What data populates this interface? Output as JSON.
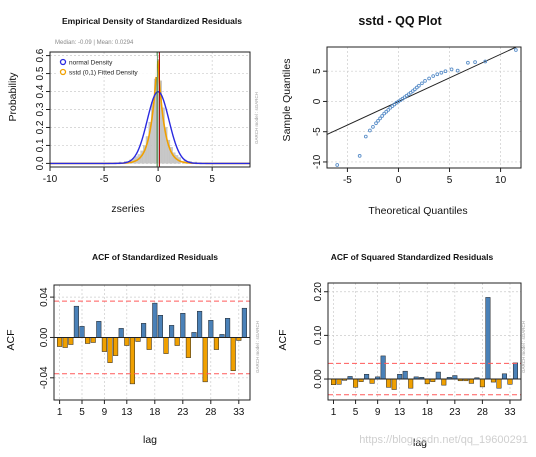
{
  "colors": {
    "steel": "#4a81b8",
    "orange": "#f0a000",
    "blue_line": "#2a2ae0",
    "hist_bar": "#c8c8c8",
    "conf_line": "#ff5a5a",
    "qq_point": "#5b8fc9",
    "grid": "#cccccc",
    "median_line": "#2e7d32",
    "mean_line": "#aa0000"
  },
  "watermark": "https://blog.csdn.net/qq_19600291",
  "chart_data": [
    {
      "type": "line",
      "title": "Empirical Density of Standardized Residuals",
      "subtitle": "Median: -0.09 | Mean: 0.0294",
      "xlabel": "zseries",
      "ylabel": "Probability",
      "side_text": "GARCH model : sGARCH",
      "xlim": [
        -10,
        8.5
      ],
      "ylim": [
        -0.02,
        0.62
      ],
      "x_ticks": [
        -10,
        -5,
        0,
        5
      ],
      "y_ticks": [
        0.0,
        0.1,
        0.2,
        0.3,
        0.4,
        0.5,
        0.6
      ],
      "y_tick_labels": [
        "0.0",
        "0.1",
        "0.2",
        "0.3",
        "0.4",
        "0.5",
        "0.6"
      ],
      "grid": true,
      "legend_position": "top-left",
      "legend": [
        "normal Density",
        "sstd (0,1) Fitted Density"
      ],
      "median_x": -0.09,
      "mean_x": 0.0294,
      "histogram_bin_width": 0.25,
      "histogram": [
        {
          "x": -4.5,
          "density": 0.003
        },
        {
          "x": -4.0,
          "density": 0.004
        },
        {
          "x": -3.5,
          "density": 0.008
        },
        {
          "x": -3.0,
          "density": 0.012
        },
        {
          "x": -2.5,
          "density": 0.02
        },
        {
          "x": -2.25,
          "density": 0.028
        },
        {
          "x": -2.0,
          "density": 0.038
        },
        {
          "x": -1.75,
          "density": 0.05
        },
        {
          "x": -1.5,
          "density": 0.07
        },
        {
          "x": -1.25,
          "density": 0.1
        },
        {
          "x": -1.0,
          "density": 0.15
        },
        {
          "x": -0.75,
          "density": 0.23
        },
        {
          "x": -0.5,
          "density": 0.34
        },
        {
          "x": -0.25,
          "density": 0.47
        },
        {
          "x": 0.0,
          "density": 0.58
        },
        {
          "x": 0.25,
          "density": 0.46
        },
        {
          "x": 0.5,
          "density": 0.31
        },
        {
          "x": 0.75,
          "density": 0.2
        },
        {
          "x": 1.0,
          "density": 0.13
        },
        {
          "x": 1.25,
          "density": 0.09
        },
        {
          "x": 1.5,
          "density": 0.06
        },
        {
          "x": 1.75,
          "density": 0.045
        },
        {
          "x": 2.0,
          "density": 0.033
        },
        {
          "x": 2.5,
          "density": 0.02
        },
        {
          "x": 3.0,
          "density": 0.012
        },
        {
          "x": 3.5,
          "density": 0.008
        },
        {
          "x": 4.5,
          "density": 0.004
        },
        {
          "x": 6.0,
          "density": 0.002
        }
      ],
      "series": [
        {
          "name": "normal Density",
          "type": "normal",
          "mean": 0.0,
          "sd": 1.0,
          "peak": 0.399
        },
        {
          "name": "sstd (0,1) Fitted Density",
          "type": "laplace-like",
          "center": -0.05,
          "peak": 0.6,
          "scale": 0.62
        }
      ]
    },
    {
      "type": "scatter",
      "title": "sstd - QQ Plot",
      "xlabel": "Theoretical Quantiles",
      "ylabel": "Sample Quantiles",
      "xlim": [
        -7,
        12
      ],
      "ylim": [
        -11,
        9
      ],
      "x_ticks": [
        -5,
        0,
        5,
        10
      ],
      "y_ticks": [
        -10,
        -5,
        0,
        5
      ],
      "grid": true,
      "reference_line": {
        "slope": 0.78,
        "intercept": 0.0
      },
      "points": [
        [
          -6.0,
          -10.5
        ],
        [
          -3.8,
          -9.0
        ],
        [
          -3.2,
          -5.8
        ],
        [
          -2.8,
          -4.8
        ],
        [
          -2.5,
          -4.2
        ],
        [
          -2.2,
          -3.6
        ],
        [
          -2.0,
          -3.2
        ],
        [
          -1.8,
          -2.8
        ],
        [
          -1.6,
          -2.4
        ],
        [
          -1.4,
          -2.0
        ],
        [
          -1.2,
          -1.7
        ],
        [
          -1.0,
          -1.4
        ],
        [
          -0.8,
          -1.05
        ],
        [
          -0.6,
          -0.78
        ],
        [
          -0.4,
          -0.5
        ],
        [
          -0.2,
          -0.22
        ],
        [
          0.0,
          0.0
        ],
        [
          0.2,
          0.22
        ],
        [
          0.4,
          0.45
        ],
        [
          0.6,
          0.7
        ],
        [
          0.8,
          0.95
        ],
        [
          1.0,
          1.2
        ],
        [
          1.2,
          1.45
        ],
        [
          1.4,
          1.72
        ],
        [
          1.6,
          2.0
        ],
        [
          1.8,
          2.3
        ],
        [
          2.0,
          2.6
        ],
        [
          2.3,
          3.0
        ],
        [
          2.6,
          3.4
        ],
        [
          3.0,
          3.8
        ],
        [
          3.4,
          4.2
        ],
        [
          3.8,
          4.5
        ],
        [
          4.2,
          4.75
        ],
        [
          4.6,
          5.0
        ],
        [
          5.2,
          5.3
        ],
        [
          5.8,
          5.1
        ],
        [
          6.8,
          6.4
        ],
        [
          7.5,
          6.5
        ],
        [
          8.5,
          6.6
        ],
        [
          11.5,
          8.5
        ]
      ]
    },
    {
      "type": "bar",
      "title": "ACF of Standardized Residuals",
      "xlabel": "lag",
      "ylabel": "ACF",
      "side_text": "GARCH model : sGARCH",
      "xlim": [
        0,
        35
      ],
      "ylim": [
        -0.062,
        0.052
      ],
      "x_ticks": [
        1,
        5,
        9,
        13,
        18,
        23,
        28,
        33
      ],
      "y_ticks": [
        -0.04,
        0.0,
        0.04
      ],
      "y_tick_labels": [
        "-0.04",
        "0.00",
        "0.04"
      ],
      "confidence_limits": [
        0.036,
        -0.036
      ],
      "grid": true,
      "categories": [
        1,
        2,
        3,
        4,
        5,
        6,
        7,
        8,
        9,
        10,
        11,
        12,
        13,
        14,
        15,
        16,
        17,
        18,
        19,
        20,
        21,
        22,
        23,
        24,
        25,
        26,
        27,
        28,
        29,
        30,
        31,
        32,
        33,
        34
      ],
      "values": [
        -0.009,
        -0.01,
        -0.007,
        0.031,
        0.011,
        -0.006,
        -0.005,
        0.016,
        -0.014,
        -0.025,
        -0.018,
        0.009,
        -0.008,
        -0.046,
        -0.004,
        0.014,
        -0.012,
        0.034,
        0.022,
        -0.016,
        0.012,
        -0.008,
        0.024,
        -0.02,
        0.005,
        0.026,
        -0.044,
        0.017,
        -0.012,
        0.003,
        0.019,
        -0.033,
        -0.003,
        0.029
      ]
    },
    {
      "type": "bar",
      "title": "ACF of Squared Standardized Residuals",
      "xlabel": "lag",
      "ylabel": "ACF",
      "side_text": "GARCH model : sGARCH",
      "xlim": [
        0,
        35
      ],
      "ylim": [
        -0.048,
        0.22
      ],
      "x_ticks": [
        1,
        5,
        9,
        13,
        18,
        23,
        28,
        33
      ],
      "y_ticks": [
        0.0,
        0.1,
        0.2
      ],
      "y_tick_labels": [
        "0.00",
        "0.10",
        "0.20"
      ],
      "confidence_limits": [
        0.036,
        -0.036
      ],
      "grid": true,
      "categories": [
        1,
        2,
        3,
        4,
        5,
        6,
        7,
        8,
        9,
        10,
        11,
        12,
        13,
        14,
        15,
        16,
        17,
        18,
        19,
        20,
        21,
        22,
        23,
        24,
        25,
        26,
        27,
        28,
        29,
        30,
        31,
        32,
        33,
        34
      ],
      "values": [
        -0.013,
        -0.012,
        -0.003,
        0.006,
        -0.019,
        -0.006,
        0.011,
        -0.01,
        0.005,
        0.053,
        -0.019,
        -0.024,
        0.011,
        0.018,
        -0.021,
        0.005,
        0.004,
        -0.011,
        -0.006,
        0.016,
        -0.014,
        0.004,
        0.008,
        -0.004,
        -0.004,
        -0.01,
        0.003,
        -0.018,
        0.187,
        -0.007,
        -0.021,
        0.012,
        -0.012,
        0.037
      ]
    }
  ]
}
